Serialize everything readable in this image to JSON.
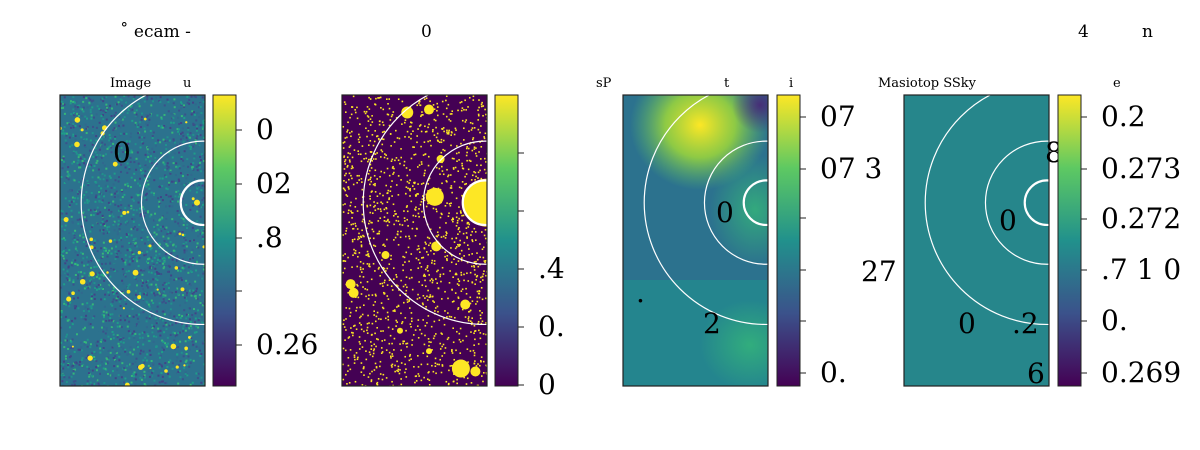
{
  "header": {
    "left": "˚ ecam   -",
    "mid": "0",
    "right_a": "4",
    "right_b": "n"
  },
  "chart_data": [
    {
      "type": "heatmap",
      "title": "Image",
      "title_extra": "u",
      "colormap": "viridis",
      "colorbar_ticks": [
        "0",
        "02",
        ".8",
        "",
        "0.26"
      ],
      "annotations": [
        "0"
      ],
      "rings": [
        0.17,
        0.47,
        0.93
      ]
    },
    {
      "type": "heatmap",
      "title": "",
      "colormap": "viridis-binary",
      "colorbar_ticks": [
        ".4",
        "0.",
        "0"
      ],
      "annotations": [],
      "rings": [
        0.17,
        0.47,
        0.93
      ]
    },
    {
      "type": "heatmap",
      "title": "t",
      "title_left": "sP",
      "title_right": "i",
      "colormap": "viridis",
      "colorbar_ticks": [
        "07",
        "07 3",
        "",
        "",
        "",
        "0."
      ],
      "annotations": [
        "0",
        "2",
        "27",
        "."
      ],
      "rings": [
        0.17,
        0.47,
        0.93
      ]
    },
    {
      "type": "heatmap",
      "title": "Masiotop SSky",
      "title_right": "e",
      "colormap": "viridis",
      "colorbar_ticks": [
        "0.2",
        "0.273",
        "0.272",
        ".7   1 0",
        "0.",
        "0.269"
      ],
      "annotations": [
        "8",
        "0",
        "0",
        ".2",
        "6"
      ],
      "rings": [
        0.17,
        0.47,
        0.93
      ]
    }
  ],
  "colors": {
    "viridis_dark": "#440154",
    "viridis_blue": "#3b528b",
    "viridis_teal": "#21918c",
    "viridis_green": "#5ec962",
    "viridis_yellow": "#fde725",
    "flat_teal": "#26868b",
    "bg_noise": "#2c728e",
    "bin_purple": "#440154"
  }
}
